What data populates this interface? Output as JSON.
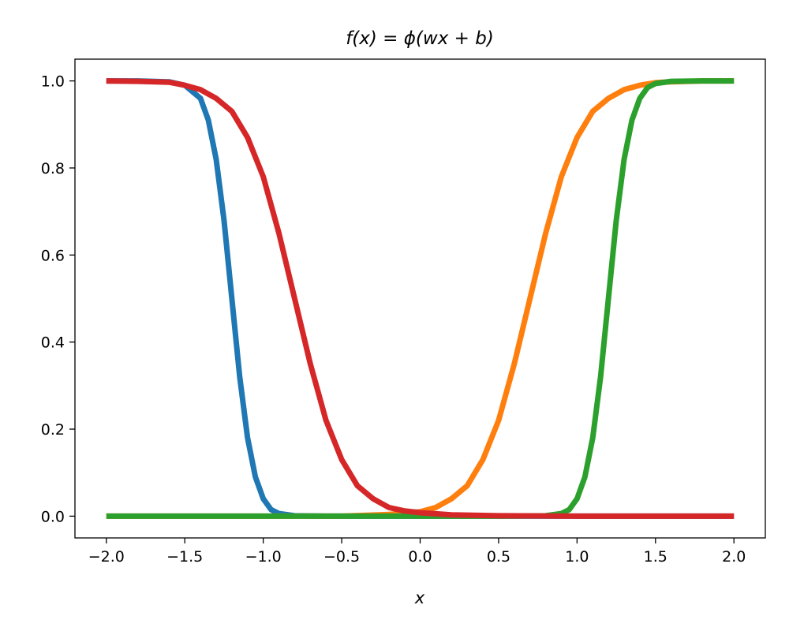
{
  "chart_data": {
    "type": "line",
    "title": "f(x) = ϕ(wx + b)",
    "xlabel": "x",
    "ylabel": "",
    "xlim": [
      -2.2,
      2.2
    ],
    "ylim": [
      -0.05,
      1.05
    ],
    "xticks": [
      -2.0,
      -1.5,
      -1.0,
      -0.5,
      0.0,
      0.5,
      1.0,
      1.5,
      2.0
    ],
    "xtick_labels": [
      "−2.0",
      "−1.5",
      "−1.0",
      "−0.5",
      "0.0",
      "0.5",
      "1.0",
      "1.5",
      "2.0"
    ],
    "yticks": [
      0.0,
      0.2,
      0.4,
      0.6,
      0.8,
      1.0
    ],
    "ytick_labels": [
      "0.0",
      "0.2",
      "0.4",
      "0.6",
      "0.8",
      "1.0"
    ],
    "grid": false,
    "legend": "none",
    "series": [
      {
        "color": "#1f77b4",
        "x": [
          -2.0,
          -1.8,
          -1.6,
          -1.5,
          -1.4,
          -1.35,
          -1.3,
          -1.25,
          -1.2,
          -1.15,
          -1.1,
          -1.05,
          -1.0,
          -0.95,
          -0.9,
          -0.8,
          -0.6,
          -0.3,
          0.0,
          0.5,
          1.0,
          1.5,
          2.0
        ],
        "y": [
          1.0,
          1.0,
          0.998,
          0.99,
          0.96,
          0.91,
          0.82,
          0.68,
          0.5,
          0.32,
          0.18,
          0.09,
          0.04,
          0.015,
          0.006,
          0.001,
          0.0,
          0.0,
          0.0,
          0.0,
          0.0,
          0.0,
          0.0
        ]
      },
      {
        "color": "#ff7f0e",
        "x": [
          -2.0,
          -1.5,
          -1.0,
          -0.5,
          -0.2,
          0.0,
          0.1,
          0.2,
          0.3,
          0.4,
          0.5,
          0.6,
          0.7,
          0.8,
          0.9,
          1.0,
          1.1,
          1.2,
          1.3,
          1.4,
          1.5,
          1.6,
          1.8,
          2.0
        ],
        "y": [
          0.0,
          0.0,
          0.0,
          0.0,
          0.004,
          0.01,
          0.02,
          0.04,
          0.07,
          0.13,
          0.22,
          0.35,
          0.5,
          0.65,
          0.78,
          0.87,
          0.93,
          0.96,
          0.98,
          0.99,
          0.996,
          0.998,
          1.0,
          1.0
        ]
      },
      {
        "color": "#2ca02c",
        "x": [
          -2.0,
          -1.0,
          0.0,
          0.5,
          0.8,
          0.9,
          0.95,
          1.0,
          1.05,
          1.1,
          1.15,
          1.2,
          1.25,
          1.3,
          1.35,
          1.4,
          1.45,
          1.5,
          1.6,
          1.8,
          2.0
        ],
        "y": [
          0.0,
          0.0,
          0.0,
          0.0,
          0.001,
          0.006,
          0.015,
          0.04,
          0.09,
          0.18,
          0.32,
          0.5,
          0.68,
          0.82,
          0.91,
          0.96,
          0.985,
          0.994,
          0.999,
          1.0,
          1.0
        ]
      },
      {
        "color": "#d62728",
        "x": [
          -2.0,
          -1.8,
          -1.6,
          -1.5,
          -1.4,
          -1.3,
          -1.2,
          -1.1,
          -1.0,
          -0.9,
          -0.8,
          -0.7,
          -0.6,
          -0.5,
          -0.4,
          -0.3,
          -0.2,
          -0.1,
          0.0,
          0.2,
          0.5,
          1.0,
          1.5,
          2.0
        ],
        "y": [
          1.0,
          0.999,
          0.997,
          0.99,
          0.98,
          0.96,
          0.93,
          0.87,
          0.78,
          0.65,
          0.5,
          0.35,
          0.22,
          0.13,
          0.07,
          0.04,
          0.02,
          0.012,
          0.008,
          0.003,
          0.001,
          0.0,
          0.0,
          0.0
        ]
      }
    ]
  }
}
